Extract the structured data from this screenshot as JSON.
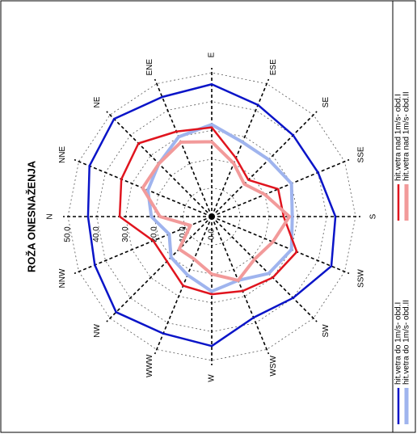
{
  "chart_data": {
    "type": "radar",
    "title": "ROŽA ONESNAŽENJA",
    "categories": [
      "N",
      "NNE",
      "NE",
      "ENE",
      "E",
      "ESE",
      "SE",
      "SSE",
      "S",
      "SSW",
      "SW",
      "WSW",
      "W",
      "WWW",
      "NW",
      "NNW"
    ],
    "rlim": [
      0,
      50
    ],
    "rticks": [
      {
        "value": 0,
        "label": "0.0"
      },
      {
        "value": 10,
        "label": "10.0"
      },
      {
        "value": 20,
        "label": "20.0"
      },
      {
        "value": 30,
        "label": "30.0"
      },
      {
        "value": 40,
        "label": "40.0"
      },
      {
        "value": 50,
        "label": "50.0"
      }
    ],
    "grid": true,
    "series": [
      {
        "name": "hit.vetra do 1m/s- obd.I",
        "color": "#0a14c8",
        "values": [
          43,
          46,
          48,
          45,
          46,
          42,
          40,
          40,
          43,
          45,
          40,
          38,
          45,
          44,
          47,
          44
        ]
      },
      {
        "name": "hit.vetra do 1m/s- obd.II",
        "color": "#9fb4ee",
        "values": [
          21,
          24,
          26,
          30,
          32,
          28,
          28,
          30,
          28,
          30,
          28,
          24,
          26,
          22,
          20,
          16
        ]
      },
      {
        "name": "hit.vetra nad 1m/s- obd.I",
        "color": "#e0141e",
        "values": [
          32,
          34,
          36,
          32,
          31,
          22,
          18,
          25,
          25,
          32,
          30,
          28,
          27,
          26,
          22,
          22
        ]
      },
      {
        "name": "hit.vetra nad 1m/s- obd.II",
        "color": "#f29a9a",
        "values": [
          18,
          26,
          26,
          28,
          26,
          20,
          16,
          20,
          27,
          23,
          21,
          24,
          20,
          16,
          16,
          8
        ]
      }
    ]
  }
}
